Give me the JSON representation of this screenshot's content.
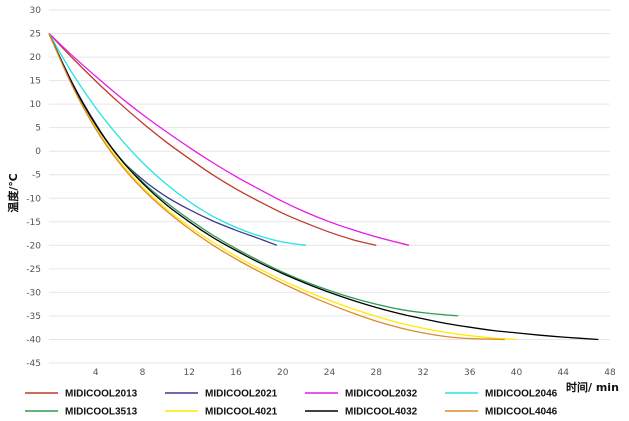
{
  "chart_data": {
    "type": "line",
    "title": "",
    "xlabel": "时间/ min",
    "ylabel": "温度/℃",
    "xlim": [
      0,
      48
    ],
    "ylim": [
      -45,
      30
    ],
    "x_ticks": [
      4,
      8,
      12,
      16,
      20,
      24,
      28,
      32,
      36,
      40,
      44,
      48
    ],
    "y_ticks": [
      30,
      25,
      20,
      15,
      10,
      5,
      0,
      -5,
      -10,
      -15,
      -20,
      -25,
      -30,
      -35,
      -40,
      -45
    ],
    "grid": "horizontal",
    "legend_position": "bottom",
    "series": [
      {
        "name": "MIDICOOL2013",
        "color": "#c0392b",
        "x": [
          0,
          2,
          4,
          6,
          8,
          10,
          12,
          14,
          16,
          18,
          20,
          22,
          24,
          26,
          28
        ],
        "y": [
          25,
          19.8,
          14.9,
          10.3,
          6.0,
          2.0,
          -1.6,
          -5.0,
          -8.0,
          -10.7,
          -13.2,
          -15.3,
          -17.2,
          -18.8,
          -20.0
        ]
      },
      {
        "name": "MIDICOOL2021",
        "color": "#3a3a8c",
        "x": [
          0,
          2,
          4,
          6,
          8,
          10,
          12,
          14,
          16,
          18,
          19.5
        ],
        "y": [
          25,
          14.5,
          5.8,
          -1.3,
          -6.0,
          -9.6,
          -12.4,
          -14.8,
          -16.8,
          -18.6,
          -20.0
        ]
      },
      {
        "name": "MIDICOOL2032",
        "color": "#e81ae8",
        "x": [
          0,
          2,
          4,
          6,
          8,
          10,
          12,
          14,
          16,
          18,
          20,
          22,
          24,
          26,
          28,
          30.8
        ],
        "y": [
          25,
          20.3,
          15.9,
          11.7,
          7.8,
          4.2,
          0.8,
          -2.4,
          -5.4,
          -8.1,
          -10.7,
          -13.0,
          -15.0,
          -16.7,
          -18.2,
          -20.0
        ]
      },
      {
        "name": "MIDICOOL2046",
        "color": "#27e3e3",
        "x": [
          0,
          2,
          4,
          6,
          8,
          10,
          12,
          14,
          16,
          18,
          20,
          22
        ],
        "y": [
          25,
          16.5,
          9.2,
          3.0,
          -2.4,
          -6.9,
          -10.7,
          -13.8,
          -16.2,
          -18.0,
          -19.3,
          -20.0
        ]
      },
      {
        "name": "MIDICOOL3513",
        "color": "#2e9c52",
        "x": [
          0,
          2,
          4,
          6,
          8,
          10,
          12,
          14,
          16,
          18,
          20,
          22,
          24,
          26,
          28,
          30,
          32,
          35
        ],
        "y": [
          25,
          14.2,
          5.5,
          -1.2,
          -6.5,
          -10.8,
          -14.5,
          -17.8,
          -20.7,
          -23.3,
          -25.7,
          -27.8,
          -29.6,
          -31.2,
          -32.5,
          -33.6,
          -34.3,
          -35.0
        ]
      },
      {
        "name": "MIDICOOL4021",
        "color": "#ffeb00",
        "x": [
          0,
          2,
          4,
          6,
          8,
          10,
          12,
          14,
          16,
          18,
          20,
          22,
          24,
          26,
          28,
          30,
          32,
          34,
          36,
          38,
          40
        ],
        "y": [
          25,
          14.0,
          5.0,
          -2.0,
          -7.6,
          -12.2,
          -16.0,
          -19.3,
          -22.3,
          -25.0,
          -27.5,
          -29.7,
          -31.7,
          -33.5,
          -35.1,
          -36.5,
          -37.6,
          -38.5,
          -39.2,
          -39.7,
          -40.0
        ]
      },
      {
        "name": "MIDICOOL4032",
        "color": "#000000",
        "x": [
          0,
          2,
          4,
          6,
          8,
          10,
          12,
          14,
          16,
          18,
          20,
          22,
          24,
          26,
          28,
          30,
          32,
          34,
          36,
          38,
          40,
          42,
          44,
          47
        ],
        "y": [
          25,
          14.3,
          5.6,
          -1.3,
          -6.8,
          -11.3,
          -15.0,
          -18.3,
          -21.1,
          -23.7,
          -26.0,
          -28.1,
          -30.0,
          -31.7,
          -33.2,
          -34.5,
          -35.6,
          -36.6,
          -37.4,
          -38.1,
          -38.6,
          -39.1,
          -39.5,
          -40.0
        ]
      },
      {
        "name": "MIDICOOL4046",
        "color": "#e08a2e",
        "x": [
          0,
          2,
          4,
          6,
          8,
          10,
          12,
          14,
          16,
          18,
          20,
          22,
          24,
          26,
          28,
          30,
          32,
          34,
          36,
          39
        ],
        "y": [
          25,
          13.8,
          4.7,
          -2.4,
          -8.0,
          -12.6,
          -16.5,
          -19.9,
          -22.9,
          -25.6,
          -28.1,
          -30.4,
          -32.5,
          -34.4,
          -36.1,
          -37.5,
          -38.6,
          -39.4,
          -39.8,
          -40.0
        ]
      }
    ]
  }
}
